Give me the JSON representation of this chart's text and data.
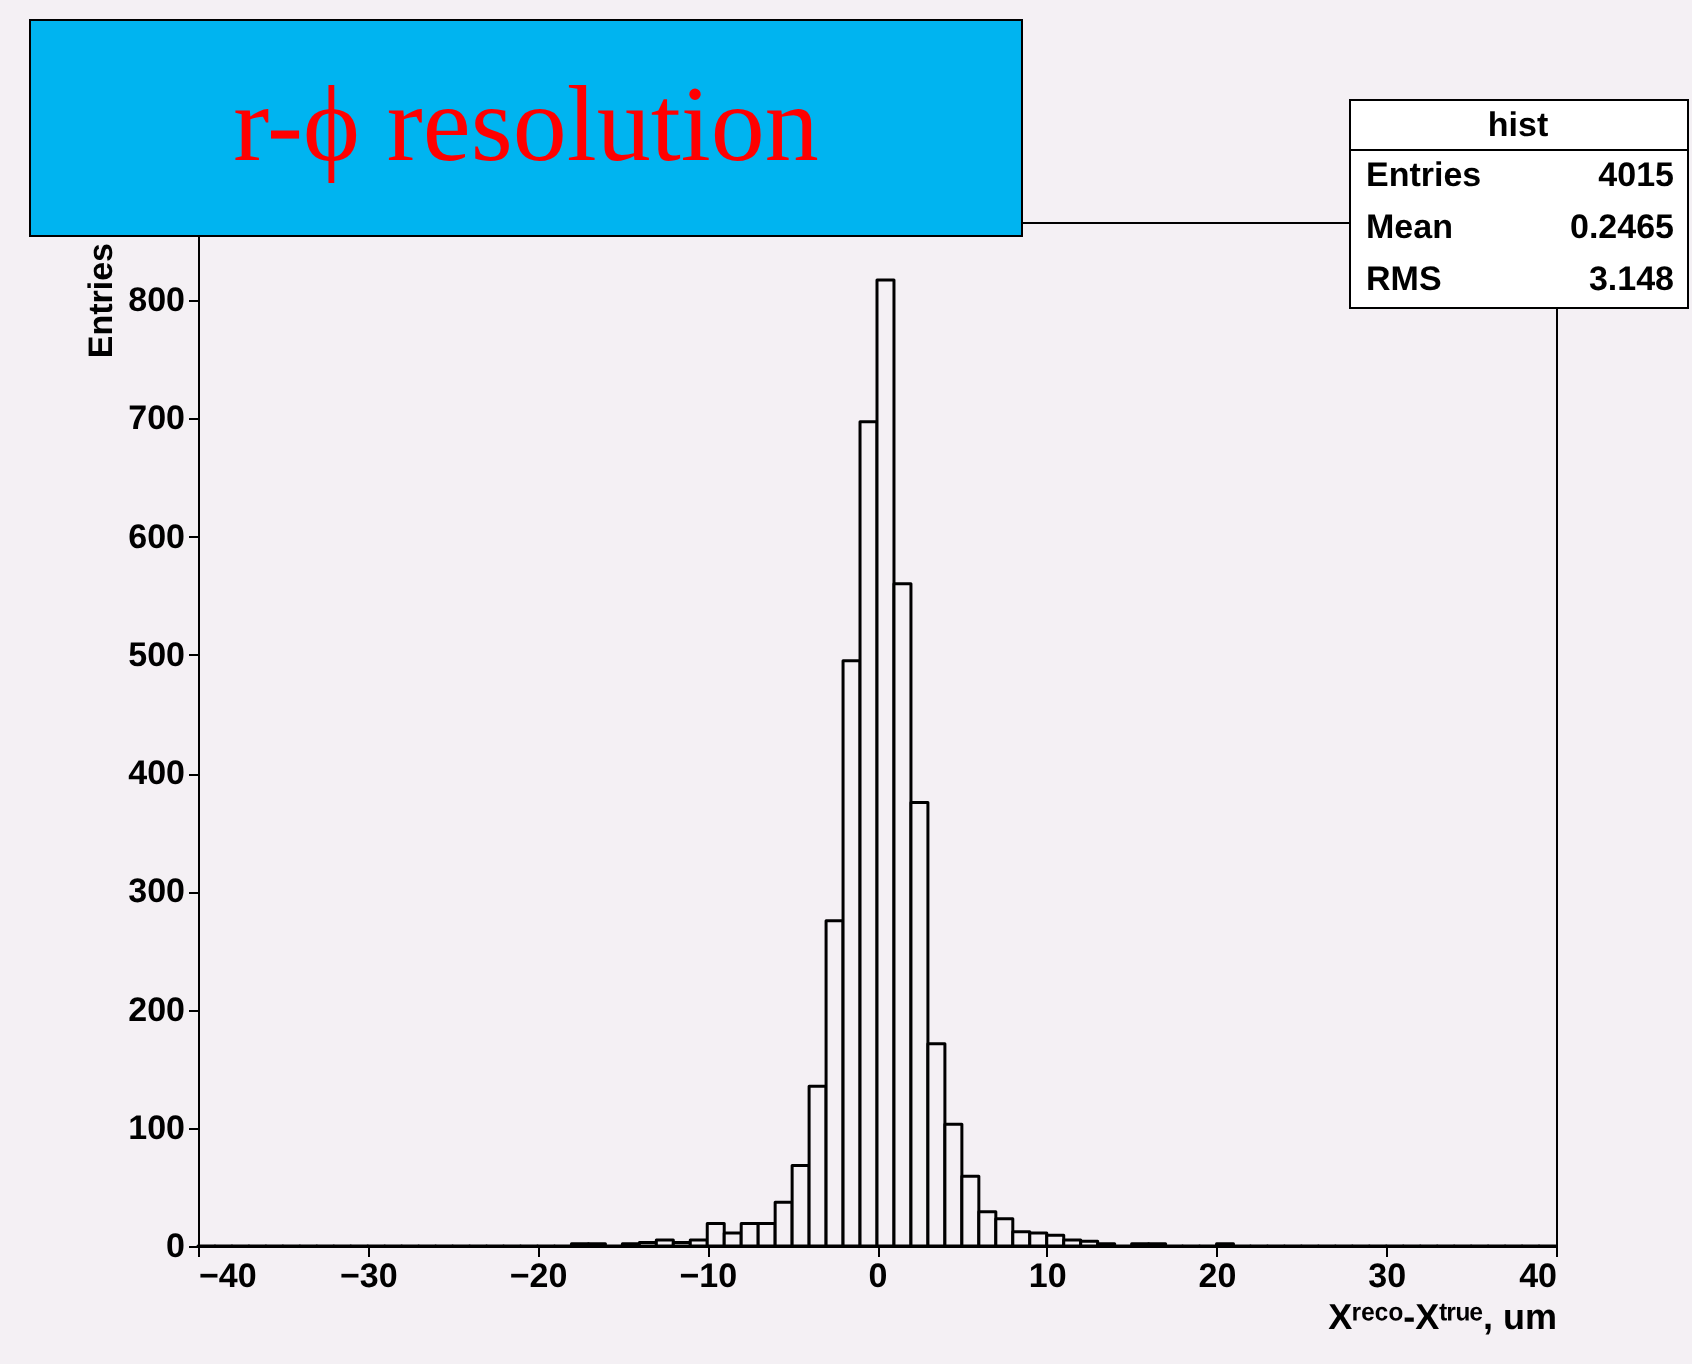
{
  "chart_data": {
    "type": "histogram",
    "title": "r-ϕ resolution",
    "xlabel": "Xʳᵉᶜᵒ-Xᵗʳᵘᵉ, um",
    "ylabel": "Entries",
    "bins": [
      -40,
      -39,
      -38,
      -37,
      -36,
      -35,
      -34,
      -33,
      -32,
      -31,
      -30,
      -29,
      -28,
      -27,
      -26,
      -25,
      -24,
      -23,
      -22,
      -21,
      -20,
      -19,
      -18,
      -17,
      -16,
      -15,
      -14,
      -13,
      -12,
      -11,
      -10,
      -9,
      -8,
      -7,
      -6,
      -5,
      -4,
      -3,
      -2,
      -1,
      0,
      1,
      2,
      3,
      4,
      5,
      6,
      7,
      8,
      9,
      10,
      11,
      12,
      13,
      14,
      15,
      16,
      17,
      18,
      19,
      20,
      21,
      22,
      23,
      24,
      25,
      26,
      27,
      28,
      29,
      30,
      31,
      32,
      33,
      34,
      35,
      36,
      37,
      38,
      39,
      40
    ],
    "values": [
      0,
      0,
      0,
      0,
      0,
      0,
      0,
      0,
      0,
      0,
      0,
      0,
      0,
      0,
      0,
      0,
      0,
      0,
      0,
      0,
      0,
      0,
      2,
      2,
      0,
      2,
      3,
      5,
      3,
      5,
      19,
      11,
      19,
      19,
      37,
      68,
      135,
      275,
      495,
      697,
      817,
      560,
      375,
      171,
      103,
      59,
      29,
      23,
      12,
      11,
      9,
      5,
      4,
      2,
      0,
      2,
      2,
      0,
      0,
      0,
      2,
      0,
      0,
      0,
      0,
      0,
      0,
      0,
      0,
      0,
      0,
      0,
      0,
      0,
      0,
      0,
      0,
      0,
      0,
      0
    ],
    "color": "#000000",
    "xlim": [
      -40,
      40
    ],
    "xticks": [
      -40,
      -30,
      -20,
      -10,
      0,
      10,
      20,
      30,
      40
    ],
    "ylim": [
      0,
      866
    ],
    "yticks": [
      0,
      100,
      200,
      300,
      400,
      500,
      600,
      700,
      800
    ],
    "grid": false,
    "annotations": [
      "hist",
      "Entries",
      "4015",
      "Mean",
      "0.2465",
      "RMS",
      "3.148"
    ]
  }
}
